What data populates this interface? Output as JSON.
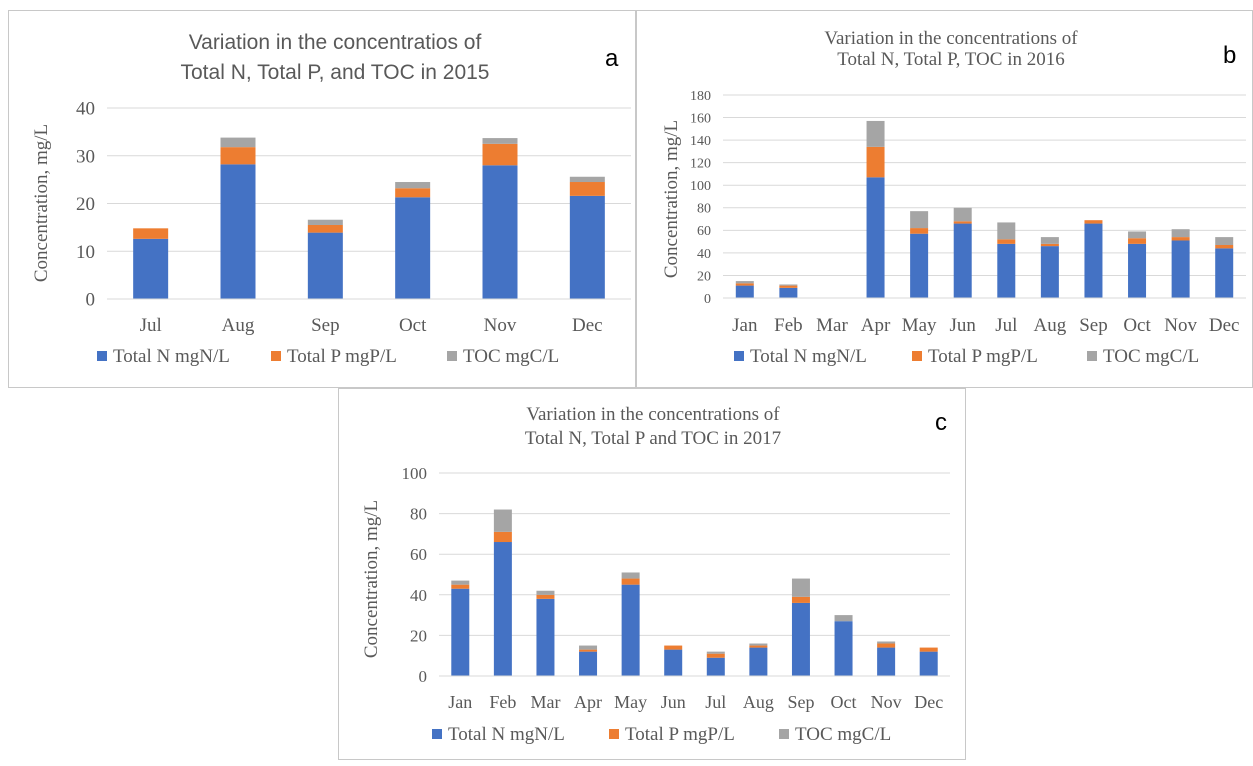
{
  "colors": {
    "total_n": "#4472C4",
    "total_p": "#ED7D31",
    "toc": "#A5A5A5",
    "grid": "#d9d9d9",
    "text": "#595959"
  },
  "chart_data": [
    {
      "panel_letter": "a",
      "type": "bar",
      "stacked": true,
      "title_lines": [
        "Variation in the concentratios of",
        "Total N, Total P, and TOC in 2015"
      ],
      "xlabel": "",
      "ylabel": "Concentration, mg/L",
      "ylim": [
        0,
        40
      ],
      "yticks": [
        0,
        10,
        20,
        30,
        40
      ],
      "grid": true,
      "legend_position": "bottom",
      "categories": [
        "Jul",
        "Aug",
        "Sep",
        "Oct",
        "Nov",
        "Dec"
      ],
      "series": [
        {
          "name": "Total N mgN/L",
          "values": [
            12.6,
            28.2,
            13.9,
            21.3,
            28.0,
            21.6
          ]
        },
        {
          "name": "Total P mgP/L",
          "values": [
            2.2,
            3.6,
            1.6,
            1.9,
            4.5,
            2.9
          ]
        },
        {
          "name": "TOC mgC/L",
          "values": [
            0,
            2.0,
            1.1,
            1.3,
            1.2,
            1.1
          ]
        }
      ]
    },
    {
      "panel_letter": "b",
      "type": "bar",
      "stacked": true,
      "title_lines": [
        "Variation in the concentrations of",
        "Total N, Total P, TOC in 2016"
      ],
      "xlabel": "",
      "ylabel": "Concentration, mg/L",
      "ylim": [
        0,
        180
      ],
      "yticks": [
        0,
        20,
        40,
        60,
        80,
        100,
        120,
        140,
        160,
        180
      ],
      "grid": true,
      "legend_position": "bottom",
      "categories": [
        "Jan",
        "Feb",
        "Mar",
        "Apr",
        "May",
        "Jun",
        "Jul",
        "Aug",
        "Sep",
        "Oct",
        "Nov",
        "Dec"
      ],
      "series": [
        {
          "name": "Total N mgN/L",
          "values": [
            11,
            9,
            0,
            107,
            57,
            66,
            48,
            46,
            66,
            48,
            51,
            44
          ]
        },
        {
          "name": "Total P mgP/L",
          "values": [
            2,
            2,
            0,
            27,
            5,
            2,
            4,
            2,
            3,
            5,
            3,
            3
          ]
        },
        {
          "name": "TOC mgC/L",
          "values": [
            2,
            1,
            0,
            23,
            15,
            12,
            15,
            6,
            0,
            6,
            7,
            7
          ]
        }
      ]
    },
    {
      "panel_letter": "c",
      "type": "bar",
      "stacked": true,
      "title_lines": [
        "Variation in the concentrations of",
        "Total N, Total P and TOC in 2017"
      ],
      "xlabel": "",
      "ylabel": "Concentration, mg/L",
      "ylim": [
        0,
        100
      ],
      "yticks": [
        0,
        20,
        40,
        60,
        80,
        100
      ],
      "grid": true,
      "legend_position": "bottom",
      "categories": [
        "Jan",
        "Feb",
        "Mar",
        "Apr",
        "May",
        "Jun",
        "Jul",
        "Aug",
        "Sep",
        "Oct",
        "Nov",
        "Dec"
      ],
      "series": [
        {
          "name": "Total N mgN/L",
          "values": [
            43,
            66,
            38,
            12,
            45,
            13,
            9,
            14,
            36,
            27,
            14,
            12
          ]
        },
        {
          "name": "Total P mgP/L",
          "values": [
            2,
            5,
            2,
            1,
            3,
            2,
            2,
            1,
            3,
            0,
            2,
            2
          ]
        },
        {
          "name": "TOC mgC/L",
          "values": [
            2,
            11,
            2,
            2,
            3,
            0,
            1,
            1,
            9,
            3,
            1,
            0
          ]
        }
      ]
    }
  ]
}
